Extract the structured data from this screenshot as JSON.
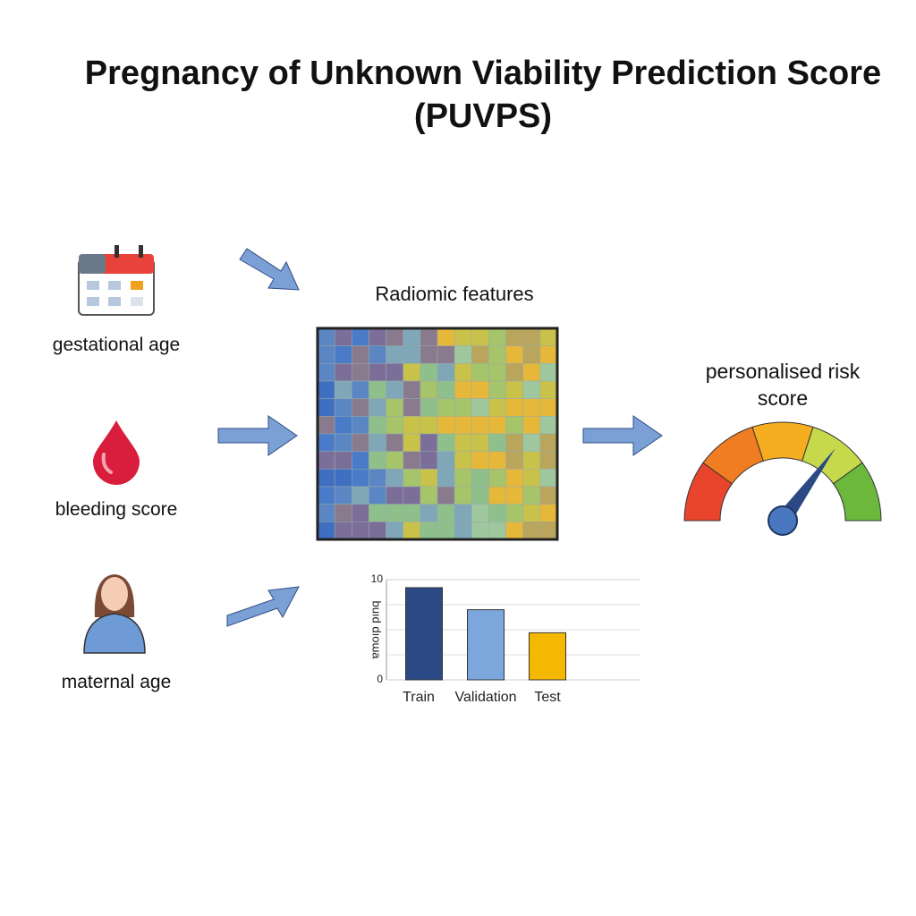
{
  "title": "Pregnancy of Unknown Viability Prediction Score (PUVPS)",
  "inputs": [
    {
      "label": "gestational age"
    },
    {
      "label": "bleeding score"
    },
    {
      "label": "maternal age"
    }
  ],
  "center_label": "Radiomic features",
  "output_label": "personalised risk score",
  "chart_data": {
    "type": "bar",
    "y_label": "buıd dıoɯa",
    "categories": [
      "Train",
      "Validation",
      "Test"
    ],
    "values": [
      9.2,
      7.0,
      4.7
    ],
    "colors": [
      "#2b4a85",
      "#7ba7dc",
      "#f4b800"
    ],
    "ylim": [
      0,
      10
    ],
    "yticks": [
      0,
      10
    ],
    "grid": true
  }
}
